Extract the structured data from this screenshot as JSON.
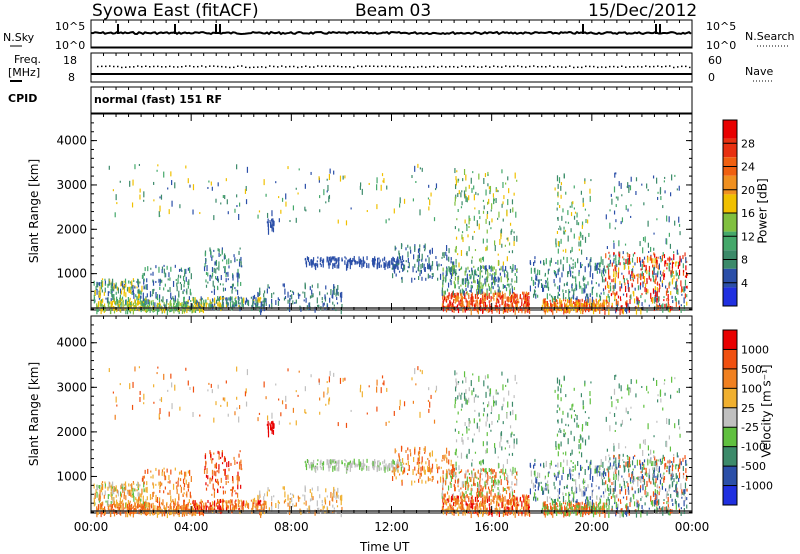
{
  "header": {
    "station": "Syowa East (fitACF)",
    "beam": "Beam 03",
    "date": "15/Dec/2012"
  },
  "noise_panel": {
    "left_label": "N.Sky",
    "right_label": "N.Search",
    "left_ticks": [
      "10^5",
      "10^0"
    ],
    "right_ticks": [
      "10^5",
      "10^0"
    ]
  },
  "freq_panel": {
    "left_label_1": "Freq.",
    "left_label_2": "[MHz]",
    "left_ticks": [
      "18",
      "8"
    ],
    "right_label": "Nave",
    "right_ticks": [
      "60",
      "0"
    ]
  },
  "cpid_panel": {
    "label": "CPID",
    "mode": "normal (fast) 151 RF"
  },
  "colors": {
    "power_scale": [
      "#2030e0",
      "#2b4fa8",
      "#3c8a6a",
      "#44a86a",
      "#80c040",
      "#f0c000",
      "#f09020",
      "#f06010",
      "#e83010",
      "#e80000"
    ],
    "velocity_scale": [
      "#2030e0",
      "#2b4fa8",
      "#3c8a6a",
      "#60c040",
      "#c0c0c0",
      "#f0b030",
      "#f08020",
      "#f05010",
      "#e80000"
    ]
  },
  "chart_data": [
    {
      "type": "heatmap",
      "name": "power",
      "ylabel": "Slant Range [km]",
      "xlabel": "",
      "ylim": [
        180,
        4600
      ],
      "xlim": [
        0,
        24
      ],
      "yticks": [
        "1000",
        "2000",
        "3000",
        "4000"
      ],
      "colorbar_label": "Power [dB]",
      "colorbar_ticks": [
        "28",
        "24",
        "20",
        "16",
        "12",
        "8",
        "4"
      ]
    },
    {
      "type": "heatmap",
      "name": "velocity",
      "ylabel": "Slant Range [km]",
      "xlabel": "Time UT",
      "ylim": [
        180,
        4600
      ],
      "xlim": [
        0,
        24
      ],
      "yticks": [
        "1000",
        "2000",
        "3000",
        "4000"
      ],
      "xticks": [
        "00:00",
        "04:00",
        "08:00",
        "12:00",
        "16:00",
        "20:00",
        "00:00"
      ],
      "colorbar_label": "Velocity [m s⁻¹]",
      "colorbar_ticks": [
        "1000",
        "500",
        "100",
        "25",
        "-25",
        "-100",
        "-500",
        "-1000"
      ]
    }
  ]
}
